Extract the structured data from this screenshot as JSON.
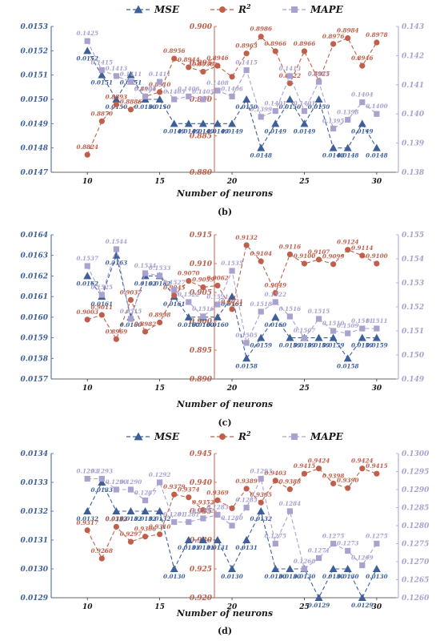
{
  "colors": {
    "mse": "#3e5f9a",
    "r2": "#c0604c",
    "mape": "#a9a2cf"
  },
  "legend": {
    "mse": "MSE",
    "r2": "R",
    "r2_sup": "2",
    "mape": "MAPE"
  },
  "chart_data": [
    {
      "type": "line",
      "panel_label": "(b)",
      "xlabel": "Number of neurons",
      "x": [
        10,
        11,
        12,
        13,
        14,
        15,
        16,
        17,
        18,
        19,
        20,
        21,
        22,
        23,
        24,
        25,
        26,
        27,
        28,
        29,
        30
      ],
      "xticks": [
        10,
        15,
        20,
        25,
        30
      ],
      "xlim": [
        7.5,
        31.5
      ],
      "left_axis": {
        "ylim": [
          0.0147,
          0.0153
        ],
        "ticks": [
          "0.0147",
          "0.0148",
          "0.0149",
          "0.0150",
          "0.0151",
          "0.0152",
          "0.0153"
        ]
      },
      "center_axis": {
        "ylim": [
          0.88,
          0.9
        ],
        "ticks": [
          "0.880",
          "0.885",
          "0.890",
          "0.895",
          "0.900"
        ]
      },
      "right_axis": {
        "ylim": [
          0.138,
          0.143
        ],
        "ticks": [
          "0.138",
          "0.139",
          "0.140",
          "0.141",
          "0.142",
          "0.143"
        ]
      },
      "series": [
        {
          "name": "MSE",
          "axis": "left",
          "values": [
            0.0152,
            0.0151,
            0.015,
            0.0151,
            0.015,
            0.015,
            0.0149,
            0.0149,
            0.0149,
            0.0149,
            0.0149,
            0.015,
            0.0148,
            0.0149,
            0.015,
            0.0149,
            0.015,
            0.0148,
            0.0148,
            0.0149,
            0.0148
          ],
          "labels": [
            "0.0152",
            "0.0151",
            "0.0150",
            "0.0151",
            "0.0150",
            "0.0150",
            "0.0149",
            "0.0149",
            "0.0149",
            "0.0149",
            "0.0149",
            "0.0150",
            "0.0148",
            "0.0149",
            "0.0150",
            "0.0149",
            "0.0150",
            "0.0148",
            "0.0148",
            "0.0149",
            "0.0148"
          ]
        },
        {
          "name": "R2",
          "axis": "center",
          "values": [
            0.8824,
            0.887,
            0.8893,
            0.8886,
            0.8904,
            0.891,
            0.8956,
            0.8944,
            0.8938,
            0.8946,
            0.8931,
            0.8963,
            0.8986,
            0.8966,
            0.8922,
            0.8966,
            0.8925,
            0.8976,
            0.8984,
            0.8946,
            0.8978
          ],
          "labels": [
            "0.8824",
            "0.8870",
            "0.8893",
            "0.8886",
            "0.8904",
            "0.8910",
            "0.8956",
            "0.8944",
            "0.8938",
            "0.8946",
            "",
            "0.8963",
            "0.8986",
            "0.8966",
            "0.8922",
            "0.8966",
            "0.8925",
            "0.8976",
            "0.8984",
            "0.8946",
            "0.8978"
          ]
        },
        {
          "name": "MAPE",
          "axis": "right",
          "values": [
            0.1425,
            0.1415,
            0.1413,
            0.1411,
            0.1406,
            0.1411,
            0.1405,
            0.1406,
            0.1405,
            0.1408,
            0.1406,
            0.1415,
            0.1399,
            0.1401,
            0.1413,
            0.1401,
            0.1411,
            0.1395,
            0.1398,
            0.1404,
            0.14
          ],
          "labels": [
            "0.1425",
            "0.1415",
            "0.1413",
            "0.1411",
            "0.1406",
            "0.1411",
            "0.1405",
            "0.1406",
            "0.1405",
            "0.1408",
            "0.1406",
            "0.1415",
            "0.1399",
            "0.1401",
            "0.1413",
            "0.1401",
            "0.1411",
            "0.1395",
            "0.1398",
            "0.1404",
            "0.1400"
          ]
        }
      ]
    },
    {
      "type": "line",
      "panel_label": "(c)",
      "xlabel": "Number of neurons",
      "x": [
        10,
        11,
        12,
        13,
        14,
        15,
        16,
        17,
        18,
        19,
        20,
        21,
        22,
        23,
        24,
        25,
        26,
        27,
        28,
        29,
        30
      ],
      "xticks": [
        10,
        15,
        20,
        25,
        30
      ],
      "xlim": [
        7.5,
        31.5
      ],
      "left_axis": {
        "ylim": [
          0.0157,
          0.0164
        ],
        "ticks": [
          "0.0157",
          "0.0158",
          "0.0159",
          "0.0160",
          "0.0161",
          "0.0162",
          "0.0163",
          "0.0164"
        ]
      },
      "center_axis": {
        "ylim": [
          0.89,
          0.915
        ],
        "ticks": [
          "0.890",
          "0.895",
          "0.900",
          "0.905",
          "0.910",
          "0.915"
        ]
      },
      "right_axis": {
        "ylim": [
          0.149,
          0.155
        ],
        "ticks": [
          "0.149",
          "0.150",
          "0.151",
          "0.152",
          "0.153",
          "0.154",
          "0.155"
        ]
      },
      "series": [
        {
          "name": "MSE",
          "axis": "left",
          "values": [
            0.0162,
            0.0161,
            0.0163,
            0.016,
            0.0162,
            0.0162,
            0.0161,
            0.016,
            0.016,
            0.016,
            0.0161,
            0.0158,
            0.0159,
            0.016,
            0.0159,
            0.0159,
            0.0159,
            0.0159,
            0.0158,
            0.0159,
            0.0159
          ],
          "labels": [
            "0.0162",
            "0.0161",
            "0.0163",
            "0.0160",
            "0.0162",
            "0.0162",
            "0.0161",
            "0.0160",
            "0.0160",
            "0.0160",
            "0.0161",
            "0.0158",
            "0.0159",
            "0.0160",
            "0.0159",
            "0.0159",
            "0.0159",
            "0.0159",
            "0.0158",
            "0.0159",
            "0.0159"
          ]
        },
        {
          "name": "R2",
          "axis": "center",
          "values": [
            0.9003,
            0.9011,
            0.8969,
            0.9037,
            0.8982,
            0.8998,
            0.9045,
            0.907,
            0.9059,
            0.9062,
            0.9021,
            0.9132,
            0.9104,
            0.9049,
            0.9116,
            0.91,
            0.9107,
            0.9099,
            0.9124,
            0.9114,
            0.91
          ],
          "labels": [
            "0.9003",
            "0.9011",
            "0.8969",
            "0.9037",
            "0.8982",
            "0.8998",
            "0.9045",
            "0.9070",
            "0.9059",
            "0.9062",
            "0.9021",
            "0.9132",
            "0.9104",
            "0.9049",
            "0.9116",
            "0.9100",
            "0.9107",
            "0.9099",
            "0.9124",
            "0.9114",
            "0.9100"
          ]
        },
        {
          "name": "MAPE",
          "axis": "right",
          "values": [
            0.1537,
            0.1525,
            0.1544,
            0.1515,
            0.1534,
            0.1533,
            0.1527,
            0.1522,
            0.1516,
            0.1521,
            0.1535,
            0.1505,
            0.1518,
            0.1522,
            0.1516,
            0.1507,
            0.1515,
            0.151,
            0.1509,
            0.1511,
            0.1511
          ],
          "labels": [
            "0.1537",
            "0.1525",
            "0.1544",
            "0.1515",
            "0.1534",
            "0.1533",
            "0.1527",
            "0.1522",
            "0.1516",
            "0.1521",
            "0.1535",
            "0.1505",
            "0.1518",
            "0.1522",
            "0.1516",
            "0.1507",
            "0.1515",
            "0.1510",
            "0.1509",
            "0.1511",
            "0.1511"
          ]
        }
      ]
    },
    {
      "type": "line",
      "panel_label": "(d)",
      "xlabel": "Number of neurons",
      "x": [
        10,
        11,
        12,
        13,
        14,
        15,
        16,
        17,
        18,
        19,
        20,
        21,
        22,
        23,
        24,
        25,
        26,
        27,
        28,
        29,
        30
      ],
      "xticks": [
        10,
        15,
        20,
        25,
        30
      ],
      "xlim": [
        7.5,
        31.5
      ],
      "left_axis": {
        "ylim": [
          0.0129,
          0.0134
        ],
        "ticks": [
          "0.0129",
          "0.0130",
          "0.0131",
          "0.0132",
          "0.0133",
          "0.0134"
        ]
      },
      "center_axis": {
        "ylim": [
          0.92,
          0.945
        ],
        "ticks": [
          "0.920",
          "0.925",
          "0.930",
          "0.935",
          "0.940",
          "0.945"
        ]
      },
      "right_axis": {
        "ylim": [
          0.126,
          0.13
        ],
        "ticks": [
          "0.1260",
          "0.1265",
          "0.1270",
          "0.1275",
          "0.1280",
          "0.1285",
          "0.1290",
          "0.1295",
          "0.1300"
        ]
      },
      "series": [
        {
          "name": "MSE",
          "axis": "left",
          "values": [
            0.0132,
            0.0133,
            0.0132,
            0.0132,
            0.0132,
            0.0132,
            0.013,
            0.0131,
            0.0131,
            0.0131,
            0.013,
            0.0131,
            0.0132,
            0.013,
            0.013,
            0.013,
            0.0129,
            0.013,
            0.013,
            0.0129,
            0.013
          ],
          "labels": [
            "0.0132",
            "0.0133",
            "0.0132",
            "0.0132",
            "0.0132",
            "0.0132",
            "0.0130",
            "0.0131",
            "0.0131",
            "0.0131",
            "0.0130",
            "0.0131",
            "0.0132",
            "0.0130",
            "0.0130",
            "0.0130",
            "0.0129",
            "0.0130",
            "0.0130",
            "0.0129",
            "0.0130"
          ]
        },
        {
          "name": "R2",
          "axis": "center",
          "values": [
            0.9317,
            0.9268,
            0.9323,
            0.9297,
            0.9306,
            0.931,
            0.9379,
            0.9374,
            0.9352,
            0.9369,
            0.9355,
            0.9389,
            0.9365,
            0.9403,
            0.9388,
            0.9415,
            0.9424,
            0.9398,
            0.939,
            0.9424,
            0.9415
          ],
          "labels": [
            "0.9317",
            "0.9268",
            "0.9323",
            "0.9297",
            "0.9306",
            "0.9310",
            "0.9379",
            "0.9374",
            "0.9352",
            "0.9369",
            "",
            "0.9389",
            "0.9365",
            "0.9403",
            "0.9388",
            "0.9415",
            "0.9424",
            "0.9398",
            "0.9390",
            "0.9424",
            "0.9415"
          ]
        },
        {
          "name": "MAPE",
          "axis": "right",
          "values": [
            0.1293,
            0.1293,
            0.129,
            0.129,
            0.1287,
            0.1292,
            0.1281,
            0.1281,
            0.1282,
            0.1283,
            0.128,
            0.1285,
            0.1293,
            0.1275,
            0.1284,
            0.1268,
            0.1271,
            0.1275,
            0.1273,
            0.1269,
            0.1275
          ],
          "labels": [
            "0.1293",
            "0.1293",
            "0.1290",
            "0.1290",
            "0.1287",
            "0.1292",
            "0.1281",
            "0.1281",
            "0.1282",
            "0.1283",
            "0.1280",
            "0.1285",
            "0.1293",
            "0.1275",
            "0.1284",
            "0.1268",
            "0.1271",
            "0.1275",
            "0.1273",
            "0.1269",
            "0.1275"
          ]
        }
      ]
    }
  ]
}
